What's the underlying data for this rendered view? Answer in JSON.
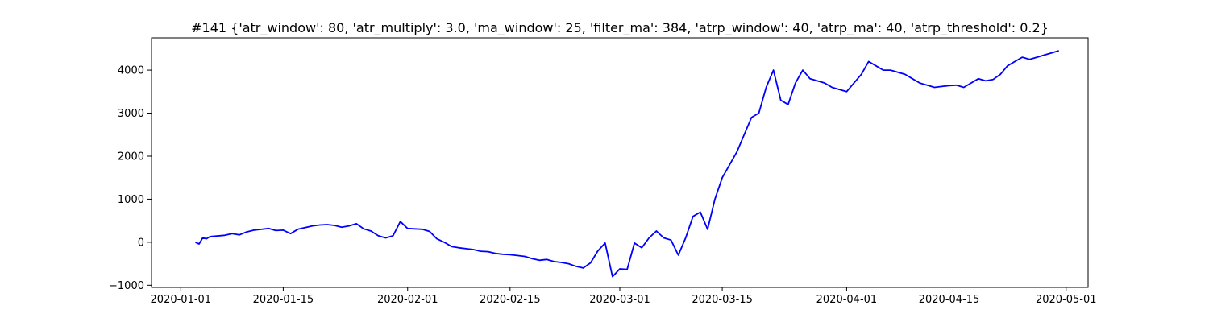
{
  "chart_data": {
    "type": "line",
    "title": "#141 {'atr_window': 80, 'atr_multiply': 3.0, 'ma_window': 25, 'filter_ma': 384, 'atrp_window': 40, 'atrp_ma': 40, 'atrp_threshold': 0.2}",
    "xlabel": "",
    "ylabel": "",
    "xlim": [
      "2019-12-28",
      "2020-05-04"
    ],
    "ylim": [
      -1050,
      4750
    ],
    "grid": false,
    "legend": "none",
    "line_color": "#0000ff",
    "x_ticks": [
      {
        "label": "2020-01-01",
        "date": "2020-01-01"
      },
      {
        "label": "2020-01-15",
        "date": "2020-01-15"
      },
      {
        "label": "2020-02-01",
        "date": "2020-02-01"
      },
      {
        "label": "2020-02-15",
        "date": "2020-02-15"
      },
      {
        "label": "2020-03-01",
        "date": "2020-03-01"
      },
      {
        "label": "2020-03-15",
        "date": "2020-03-15"
      },
      {
        "label": "2020-04-01",
        "date": "2020-04-01"
      },
      {
        "label": "2020-04-15",
        "date": "2020-04-15"
      },
      {
        "label": "2020-05-01",
        "date": "2020-05-01"
      }
    ],
    "y_ticks": [
      {
        "label": "−1000",
        "value": -1000
      },
      {
        "label": "0",
        "value": 0
      },
      {
        "label": "1000",
        "value": 1000
      },
      {
        "label": "2000",
        "value": 2000
      },
      {
        "label": "3000",
        "value": 3000
      },
      {
        "label": "4000",
        "value": 4000
      }
    ],
    "series": [
      {
        "x": [
          "2020-01-03",
          "2020-01-03T12:00",
          "2020-01-04",
          "2020-01-04T12:00",
          "2020-01-05",
          "2020-01-07",
          "2020-01-08",
          "2020-01-09",
          "2020-01-10",
          "2020-01-11",
          "2020-01-13",
          "2020-01-14",
          "2020-01-15",
          "2020-01-16",
          "2020-01-17",
          "2020-01-19",
          "2020-01-20",
          "2020-01-21",
          "2020-01-22",
          "2020-01-23",
          "2020-01-24",
          "2020-01-25",
          "2020-01-26",
          "2020-01-27",
          "2020-01-28",
          "2020-01-29",
          "2020-01-30",
          "2020-01-31",
          "2020-02-01",
          "2020-02-02",
          "2020-02-03",
          "2020-02-04",
          "2020-02-05",
          "2020-02-06",
          "2020-02-07",
          "2020-02-08",
          "2020-02-09",
          "2020-02-10",
          "2020-02-11",
          "2020-02-12",
          "2020-02-13",
          "2020-02-14",
          "2020-02-15",
          "2020-02-16",
          "2020-02-17",
          "2020-02-18",
          "2020-02-19",
          "2020-02-20",
          "2020-02-21",
          "2020-02-22",
          "2020-02-23",
          "2020-02-24",
          "2020-02-25",
          "2020-02-26",
          "2020-02-27",
          "2020-02-28",
          "2020-02-29",
          "2020-03-01",
          "2020-03-02",
          "2020-03-03",
          "2020-03-04",
          "2020-03-05",
          "2020-03-06",
          "2020-03-07",
          "2020-03-08",
          "2020-03-09",
          "2020-03-10",
          "2020-03-11",
          "2020-03-12",
          "2020-03-13",
          "2020-03-14",
          "2020-03-15",
          "2020-03-16",
          "2020-03-17",
          "2020-03-18",
          "2020-03-19",
          "2020-03-20",
          "2020-03-21",
          "2020-03-22",
          "2020-03-23",
          "2020-03-24",
          "2020-03-25",
          "2020-03-26",
          "2020-03-27",
          "2020-03-28",
          "2020-03-29",
          "2020-03-30",
          "2020-03-31",
          "2020-04-01",
          "2020-04-02",
          "2020-04-03",
          "2020-04-04",
          "2020-04-05",
          "2020-04-06",
          "2020-04-07",
          "2020-04-08",
          "2020-04-09",
          "2020-04-10",
          "2020-04-11",
          "2020-04-12",
          "2020-04-13",
          "2020-04-14",
          "2020-04-15",
          "2020-04-16",
          "2020-04-17",
          "2020-04-18",
          "2020-04-19",
          "2020-04-20",
          "2020-04-21",
          "2020-04-22",
          "2020-04-23",
          "2020-04-24",
          "2020-04-25",
          "2020-04-26",
          "2020-04-27",
          "2020-04-28",
          "2020-04-29",
          "2020-04-30"
        ],
        "y": [
          0,
          -40,
          100,
          80,
          130,
          160,
          200,
          170,
          240,
          280,
          320,
          270,
          280,
          200,
          300,
          380,
          400,
          410,
          390,
          350,
          380,
          430,
          310,
          260,
          150,
          100,
          150,
          480,
          320,
          310,
          300,
          250,
          80,
          0,
          -100,
          -130,
          -150,
          -170,
          -210,
          -220,
          -260,
          -280,
          -290,
          -310,
          -330,
          -380,
          -420,
          -400,
          -450,
          -470,
          -500,
          -560,
          -600,
          -480,
          -200,
          -20,
          -800,
          -620,
          -630,
          -20,
          -130,
          100,
          260,
          100,
          50,
          -300,
          100,
          600,
          700,
          300,
          1000,
          1500,
          1800,
          2100,
          2500,
          2900,
          3000,
          3600,
          4000,
          3300,
          3200,
          3700,
          4000,
          3800,
          3750,
          3700,
          3600,
          3550,
          3500,
          3700,
          3900,
          4200,
          4100,
          4000,
          4000,
          3950,
          3900,
          3800,
          3700,
          3650,
          3600,
          3620,
          3640,
          3650,
          3600,
          3700,
          3800,
          3750,
          3780,
          3900,
          4100,
          4200,
          4300,
          4250,
          4300,
          4350,
          4400,
          4450
        ]
      }
    ]
  }
}
